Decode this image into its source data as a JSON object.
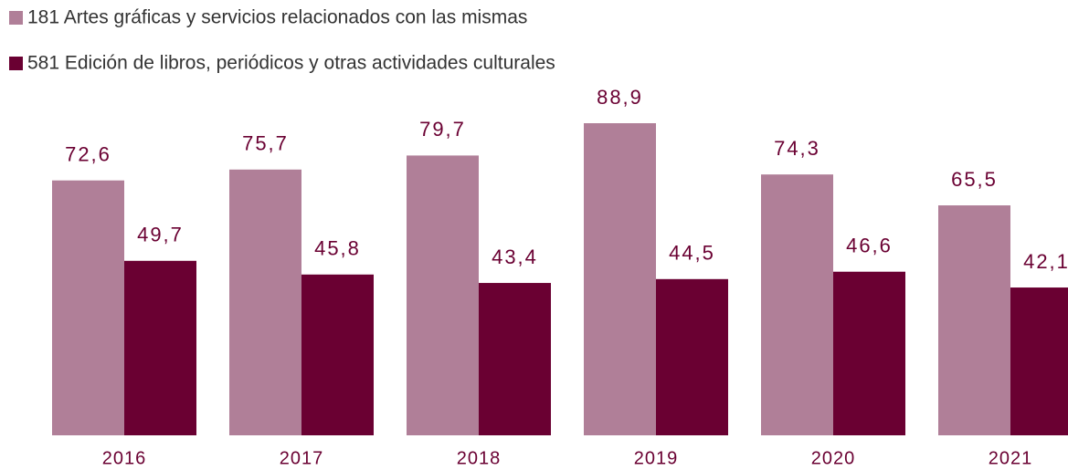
{
  "chart_data": {
    "type": "bar",
    "categories": [
      "2016",
      "2017",
      "2018",
      "2019",
      "2020",
      "2021"
    ],
    "series": [
      {
        "name": "181 Artes gráficas y servicios relacionados con las mismas",
        "color": "#b07f98",
        "values": [
          72.6,
          75.7,
          79.7,
          88.9,
          74.3,
          65.5
        ],
        "value_labels": [
          "72,6",
          "75,7",
          "79,7",
          "88,9",
          "74,3",
          "65,5"
        ]
      },
      {
        "name": "581 Edición de libros, periódicos y otras actividades culturales",
        "color": "#6a0032",
        "values": [
          49.7,
          45.8,
          43.4,
          44.5,
          46.6,
          42.1
        ],
        "value_labels": [
          "49,7",
          "45,8",
          "43,4",
          "44,5",
          "46,6",
          "42,1"
        ]
      }
    ],
    "ylim": [
      0,
      100
    ]
  }
}
